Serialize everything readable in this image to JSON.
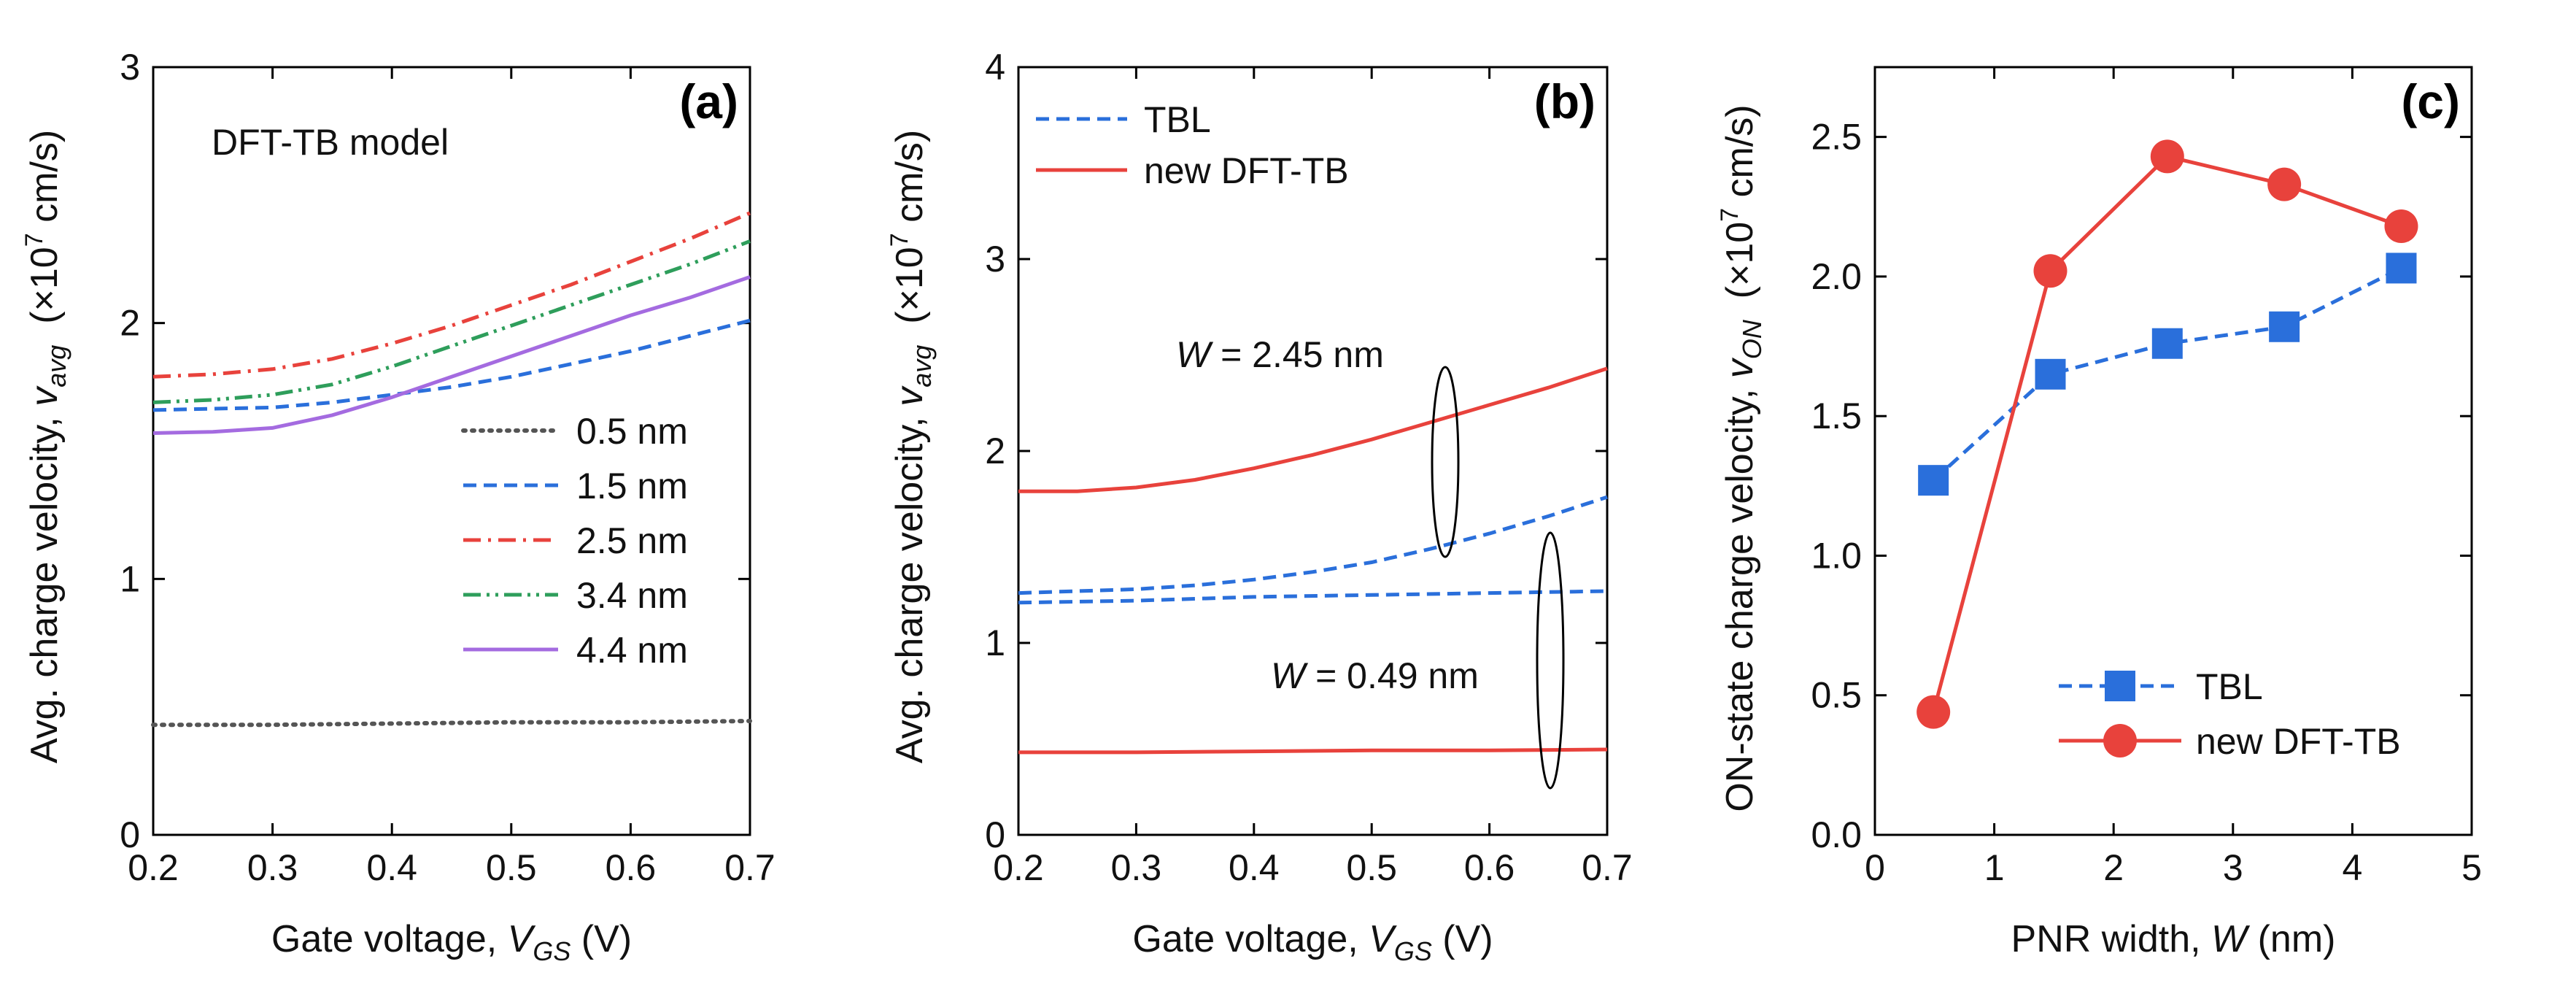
{
  "chart_data": [
    {
      "type": "line",
      "panel_label": "(a)",
      "annotation": "DFT-TB model",
      "xlabel": {
        "main": "Gate voltage, ",
        "var": "V",
        "sub": "GS",
        "unit": "(V)"
      },
      "ylabel": {
        "main": "Avg. charge velocity, ",
        "var": "v",
        "sub": "avg",
        "unit_pre": "(×10",
        "unit_sup": "7",
        "unit_post": " cm/s)"
      },
      "xlim": [
        0.2,
        0.7
      ],
      "ylim": [
        0,
        3
      ],
      "xticks": [
        0.2,
        0.3,
        0.4,
        0.5,
        0.6,
        0.7
      ],
      "xtick_labels": [
        "0.2",
        "0.3",
        "0.4",
        "0.5",
        "0.6",
        "0.7"
      ],
      "yticks": [
        0,
        1,
        2,
        3
      ],
      "ytick_labels": [
        "0",
        "1",
        "2",
        "3"
      ],
      "legend_position": "middle-right",
      "series": [
        {
          "name": "0.5 nm",
          "color": "#555555",
          "style": "dotted",
          "x": [
            0.2,
            0.3,
            0.4,
            0.5,
            0.6,
            0.7
          ],
          "y": [
            0.43,
            0.43,
            0.435,
            0.44,
            0.44,
            0.445
          ]
        },
        {
          "name": "1.5 nm",
          "color": "#2a6fdb",
          "style": "dashed",
          "x": [
            0.2,
            0.25,
            0.3,
            0.35,
            0.4,
            0.45,
            0.5,
            0.55,
            0.6,
            0.65,
            0.7
          ],
          "y": [
            1.66,
            1.665,
            1.67,
            1.69,
            1.72,
            1.75,
            1.79,
            1.84,
            1.89,
            1.95,
            2.01
          ]
        },
        {
          "name": "2.5 nm",
          "color": "#e8423c",
          "style": "dashdot",
          "x": [
            0.2,
            0.25,
            0.3,
            0.35,
            0.4,
            0.45,
            0.5,
            0.55,
            0.6,
            0.65,
            0.7
          ],
          "y": [
            1.79,
            1.8,
            1.82,
            1.86,
            1.92,
            1.99,
            2.07,
            2.15,
            2.24,
            2.33,
            2.43
          ]
        },
        {
          "name": "3.4 nm",
          "color": "#2e9e5b",
          "style": "dashdotdot",
          "x": [
            0.2,
            0.25,
            0.3,
            0.35,
            0.4,
            0.45,
            0.5,
            0.55,
            0.6,
            0.65,
            0.7
          ],
          "y": [
            1.69,
            1.7,
            1.72,
            1.76,
            1.83,
            1.91,
            1.99,
            2.07,
            2.15,
            2.23,
            2.32
          ]
        },
        {
          "name": "4.4 nm",
          "color": "#a46be0",
          "style": "solid",
          "x": [
            0.2,
            0.25,
            0.3,
            0.35,
            0.4,
            0.45,
            0.5,
            0.55,
            0.6,
            0.65,
            0.7
          ],
          "y": [
            1.57,
            1.575,
            1.59,
            1.64,
            1.71,
            1.79,
            1.87,
            1.95,
            2.03,
            2.1,
            2.18
          ]
        }
      ]
    },
    {
      "type": "line",
      "panel_label": "(b)",
      "xlabel": {
        "main": "Gate voltage, ",
        "var": "V",
        "sub": "GS",
        "unit": "(V)"
      },
      "ylabel": {
        "main": "Avg. charge velocity, ",
        "var": "v",
        "sub": "avg",
        "unit_pre": "(×10",
        "unit_sup": "7",
        "unit_post": " cm/s)"
      },
      "xlim": [
        0.2,
        0.7
      ],
      "ylim": [
        0,
        4
      ],
      "xticks": [
        0.2,
        0.3,
        0.4,
        0.5,
        0.6,
        0.7
      ],
      "xtick_labels": [
        "0.2",
        "0.3",
        "0.4",
        "0.5",
        "0.6",
        "0.7"
      ],
      "yticks": [
        0,
        1,
        2,
        3,
        4
      ],
      "ytick_labels": [
        "0",
        "1",
        "2",
        "3",
        "4"
      ],
      "legend_position": "top-left",
      "legend": [
        {
          "name": "TBL",
          "color": "#2a6fdb",
          "style": "dashed"
        },
        {
          "name": "new DFT-TB",
          "color": "#e8423c",
          "style": "solid"
        }
      ],
      "annotations": [
        {
          "var": "W",
          "text": " = 2.45 nm"
        },
        {
          "var": "W",
          "text": " = 0.49 nm"
        }
      ],
      "series": [
        {
          "name": "new DFT-TB, W = 2.45 nm",
          "color": "#e8423c",
          "style": "solid",
          "x": [
            0.2,
            0.25,
            0.3,
            0.35,
            0.4,
            0.45,
            0.5,
            0.55,
            0.6,
            0.65,
            0.7
          ],
          "y": [
            1.79,
            1.79,
            1.81,
            1.85,
            1.91,
            1.98,
            2.06,
            2.15,
            2.24,
            2.33,
            2.43
          ]
        },
        {
          "name": "TBL, W = 2.45 nm",
          "color": "#2a6fdb",
          "style": "dashed",
          "x": [
            0.2,
            0.25,
            0.3,
            0.35,
            0.4,
            0.45,
            0.5,
            0.55,
            0.6,
            0.65,
            0.7
          ],
          "y": [
            1.26,
            1.27,
            1.28,
            1.3,
            1.33,
            1.37,
            1.42,
            1.49,
            1.57,
            1.66,
            1.76
          ]
        },
        {
          "name": "TBL, W = 0.49 nm",
          "color": "#2a6fdb",
          "style": "dashed",
          "x": [
            0.2,
            0.3,
            0.4,
            0.5,
            0.6,
            0.7
          ],
          "y": [
            1.21,
            1.22,
            1.24,
            1.25,
            1.26,
            1.27
          ]
        },
        {
          "name": "new DFT-TB, W = 0.49 nm",
          "color": "#e8423c",
          "style": "solid",
          "x": [
            0.2,
            0.3,
            0.4,
            0.5,
            0.6,
            0.7
          ],
          "y": [
            0.43,
            0.43,
            0.435,
            0.44,
            0.44,
            0.445
          ]
        }
      ]
    },
    {
      "type": "line",
      "panel_label": "(c)",
      "xlabel": {
        "main": "PNR width, ",
        "var": "W",
        "sub": "",
        "unit": "(nm)"
      },
      "ylabel": {
        "main": "ON-state charge velocity, ",
        "var": "v",
        "sub": "ON",
        "unit_pre": "(×10",
        "unit_sup": "7",
        "unit_post": " cm/s)"
      },
      "xlim": [
        0,
        5
      ],
      "ylim": [
        0,
        2.75
      ],
      "xticks": [
        0,
        1,
        2,
        3,
        4,
        5
      ],
      "xtick_labels": [
        "0",
        "1",
        "2",
        "3",
        "4",
        "5"
      ],
      "yticks": [
        0,
        0.5,
        1.0,
        1.5,
        2.0,
        2.5
      ],
      "ytick_labels": [
        "0.0",
        "0.5",
        "1.0",
        "1.5",
        "2.0",
        "2.5"
      ],
      "legend_position": "bottom-right",
      "series": [
        {
          "name": "TBL",
          "color": "#2a6fdb",
          "style": "dashed",
          "marker": "square",
          "x": [
            0.49,
            1.47,
            2.45,
            3.43,
            4.41
          ],
          "y": [
            1.27,
            1.65,
            1.76,
            1.82,
            2.03
          ]
        },
        {
          "name": "new DFT-TB",
          "color": "#e8423c",
          "style": "solid",
          "marker": "circle",
          "x": [
            0.49,
            1.47,
            2.45,
            3.43,
            4.41
          ],
          "y": [
            0.44,
            2.02,
            2.43,
            2.33,
            2.18
          ]
        }
      ]
    }
  ]
}
